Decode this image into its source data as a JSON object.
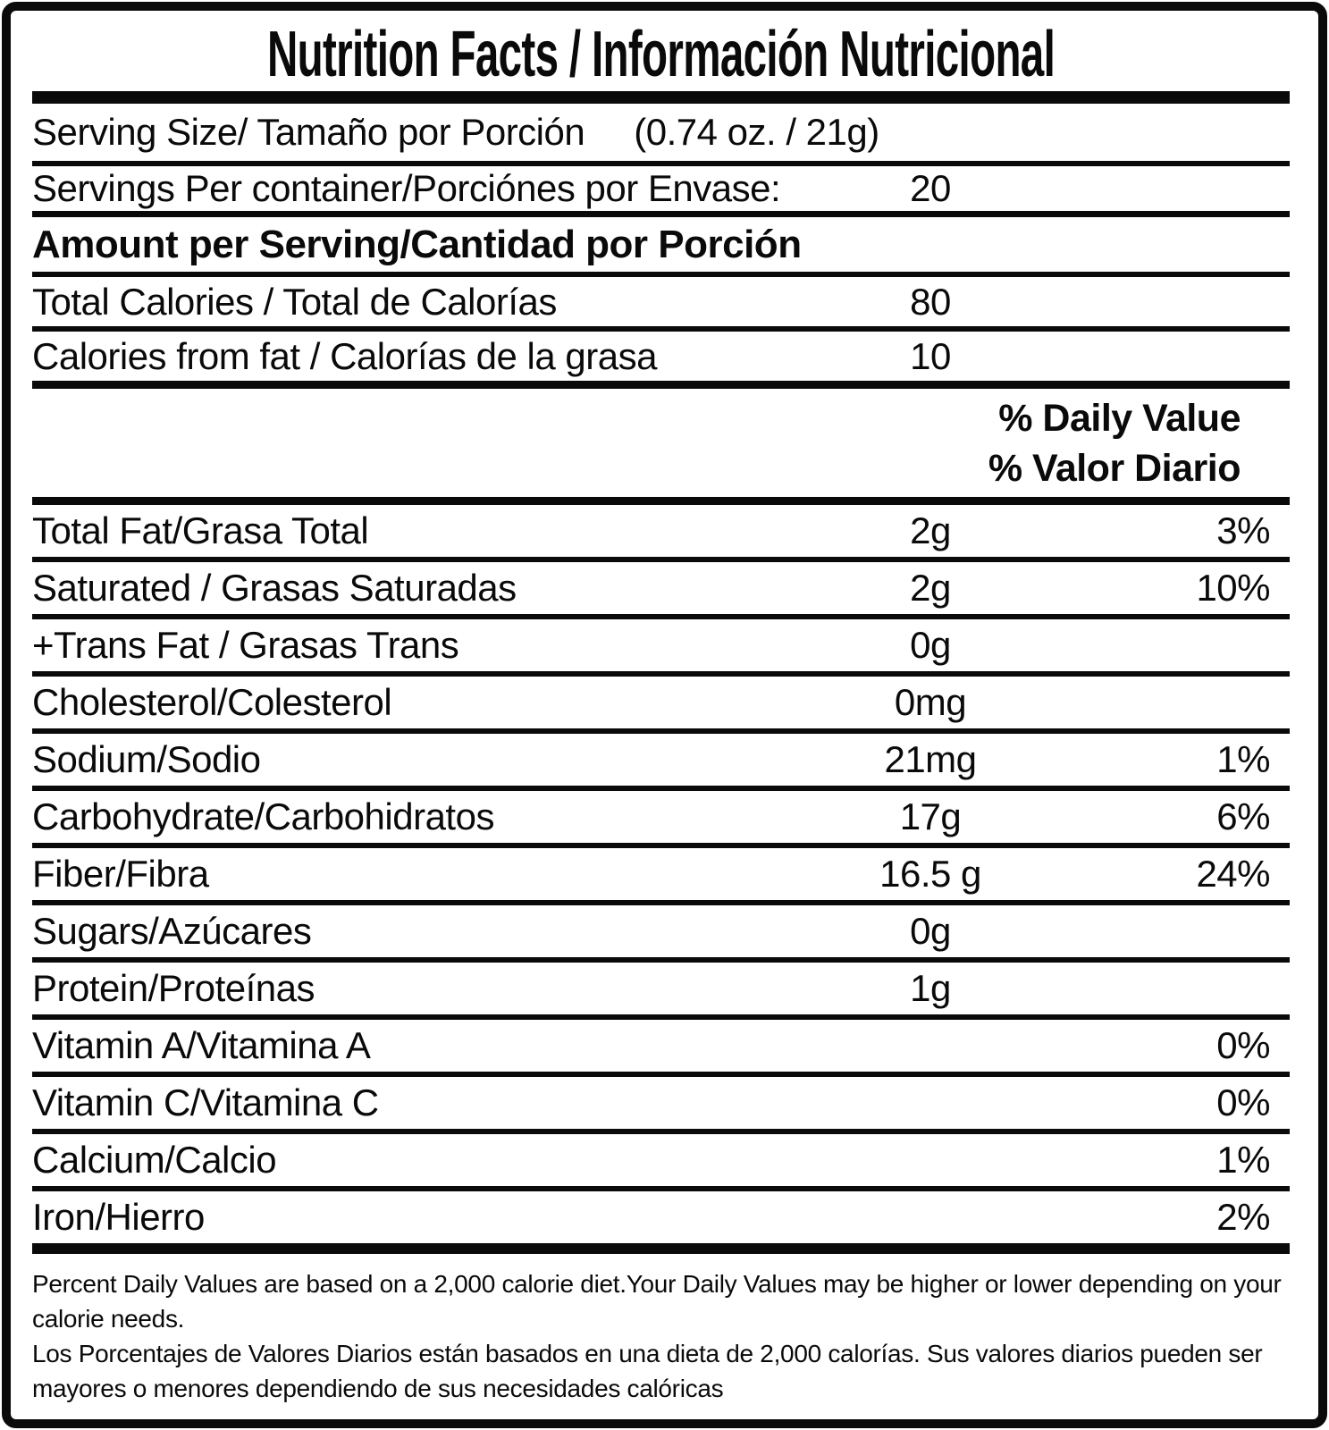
{
  "title": "Nutrition Facts / Información Nutricional",
  "serving_size": {
    "label": "Serving Size/ Tamaño por Porción",
    "value": "(0.74 oz. / 21g)"
  },
  "servings_per_container": {
    "label": "Servings Per container/Porciónes por Envase:",
    "value": "20"
  },
  "amount_per_serving_header": "Amount per Serving/Cantidad por Porción",
  "total_calories": {
    "label": "Total Calories / Total de Calorías",
    "value": "80"
  },
  "calories_from_fat": {
    "label": "Calories from fat / Calorías de la grasa",
    "value": "10"
  },
  "daily_value_header": {
    "line1": "% Daily Value",
    "line2": "% Valor Diario"
  },
  "nutrients": [
    {
      "label": "Total Fat/Grasa Total",
      "value": "2g",
      "dv": "3%"
    },
    {
      "label": "Saturated / Grasas Saturadas",
      "value": "2g",
      "dv": "10%"
    },
    {
      "label": "+Trans Fat / Grasas Trans",
      "value": "0g",
      "dv": ""
    },
    {
      "label": "Cholesterol/Colesterol",
      "value": "0mg",
      "dv": ""
    },
    {
      "label": "Sodium/Sodio",
      "value": "21mg",
      "dv": "1%"
    },
    {
      "label": "Carbohydrate/Carbohidratos",
      "value": "17g",
      "dv": "6%"
    },
    {
      "label": "Fiber/Fibra",
      "value": "16.5 g",
      "dv": "24%"
    },
    {
      "label": "Sugars/Azúcares",
      "value": "0g",
      "dv": ""
    },
    {
      "label": "Protein/Proteínas",
      "value": "1g",
      "dv": ""
    },
    {
      "label": "Vitamin A/Vitamina A",
      "value": "",
      "dv": "0%"
    },
    {
      "label": "Vitamin C/Vitamina C",
      "value": "",
      "dv": "0%"
    },
    {
      "label": "Calcium/Calcio",
      "value": "",
      "dv": "1%"
    },
    {
      "label": "Iron/Hierro",
      "value": "",
      "dv": "2%"
    }
  ],
  "footnote": {
    "english": "Percent Daily Values are based on a 2,000 calorie diet.Your Daily Values may be higher or lower depending on your calorie needs.",
    "spanish": "Los Porcentajes de Valores Diarios están basados en una dieta de 2,000 calorías. Sus valores diarios pueden ser mayores o menores dependiendo de sus necesidades calóricas"
  },
  "colors": {
    "ink": "#0a0a0a",
    "background": "#ffffff"
  }
}
